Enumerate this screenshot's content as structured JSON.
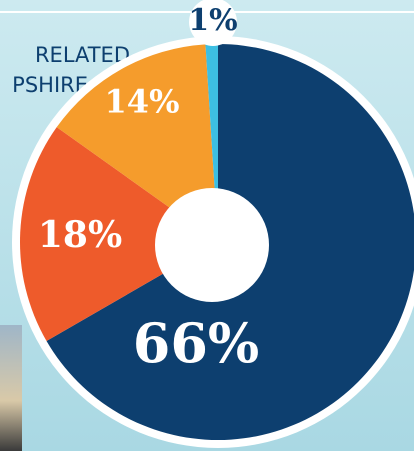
{
  "chart_data": {
    "type": "pie",
    "title_lines": [
      "RELATED",
      "PSHIRE"
    ],
    "values": [
      66,
      18,
      14,
      1
    ],
    "value_labels": [
      "66%",
      "18%",
      "14%",
      "1%"
    ],
    "colors": [
      "#0d3f6f",
      "#ee5b2b",
      "#f59c2c",
      "#3dbfe2"
    ]
  }
}
